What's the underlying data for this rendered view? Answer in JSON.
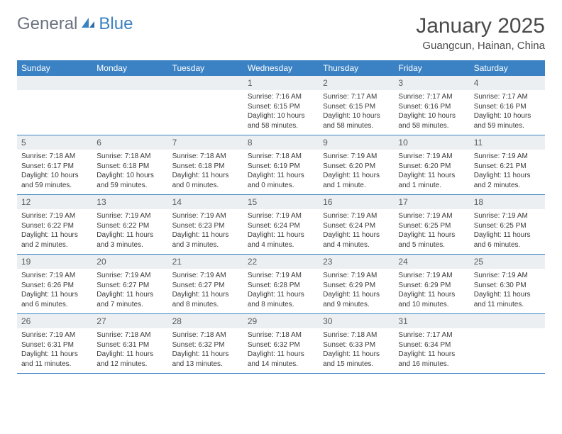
{
  "logo": {
    "text1": "General",
    "text2": "Blue"
  },
  "title": "January 2025",
  "location": "Guangcun, Hainan, China",
  "header_bg": "#3b82c4",
  "header_fg": "#ffffff",
  "daynum_bg": "#eceff1",
  "border_color": "#3b82c4",
  "weekdays": [
    "Sunday",
    "Monday",
    "Tuesday",
    "Wednesday",
    "Thursday",
    "Friday",
    "Saturday"
  ],
  "weeks": [
    [
      null,
      null,
      null,
      {
        "n": "1",
        "sr": "Sunrise: 7:16 AM",
        "ss": "Sunset: 6:15 PM",
        "dl": "Daylight: 10 hours and 58 minutes."
      },
      {
        "n": "2",
        "sr": "Sunrise: 7:17 AM",
        "ss": "Sunset: 6:15 PM",
        "dl": "Daylight: 10 hours and 58 minutes."
      },
      {
        "n": "3",
        "sr": "Sunrise: 7:17 AM",
        "ss": "Sunset: 6:16 PM",
        "dl": "Daylight: 10 hours and 58 minutes."
      },
      {
        "n": "4",
        "sr": "Sunrise: 7:17 AM",
        "ss": "Sunset: 6:16 PM",
        "dl": "Daylight: 10 hours and 59 minutes."
      }
    ],
    [
      {
        "n": "5",
        "sr": "Sunrise: 7:18 AM",
        "ss": "Sunset: 6:17 PM",
        "dl": "Daylight: 10 hours and 59 minutes."
      },
      {
        "n": "6",
        "sr": "Sunrise: 7:18 AM",
        "ss": "Sunset: 6:18 PM",
        "dl": "Daylight: 10 hours and 59 minutes."
      },
      {
        "n": "7",
        "sr": "Sunrise: 7:18 AM",
        "ss": "Sunset: 6:18 PM",
        "dl": "Daylight: 11 hours and 0 minutes."
      },
      {
        "n": "8",
        "sr": "Sunrise: 7:18 AM",
        "ss": "Sunset: 6:19 PM",
        "dl": "Daylight: 11 hours and 0 minutes."
      },
      {
        "n": "9",
        "sr": "Sunrise: 7:19 AM",
        "ss": "Sunset: 6:20 PM",
        "dl": "Daylight: 11 hours and 1 minute."
      },
      {
        "n": "10",
        "sr": "Sunrise: 7:19 AM",
        "ss": "Sunset: 6:20 PM",
        "dl": "Daylight: 11 hours and 1 minute."
      },
      {
        "n": "11",
        "sr": "Sunrise: 7:19 AM",
        "ss": "Sunset: 6:21 PM",
        "dl": "Daylight: 11 hours and 2 minutes."
      }
    ],
    [
      {
        "n": "12",
        "sr": "Sunrise: 7:19 AM",
        "ss": "Sunset: 6:22 PM",
        "dl": "Daylight: 11 hours and 2 minutes."
      },
      {
        "n": "13",
        "sr": "Sunrise: 7:19 AM",
        "ss": "Sunset: 6:22 PM",
        "dl": "Daylight: 11 hours and 3 minutes."
      },
      {
        "n": "14",
        "sr": "Sunrise: 7:19 AM",
        "ss": "Sunset: 6:23 PM",
        "dl": "Daylight: 11 hours and 3 minutes."
      },
      {
        "n": "15",
        "sr": "Sunrise: 7:19 AM",
        "ss": "Sunset: 6:24 PM",
        "dl": "Daylight: 11 hours and 4 minutes."
      },
      {
        "n": "16",
        "sr": "Sunrise: 7:19 AM",
        "ss": "Sunset: 6:24 PM",
        "dl": "Daylight: 11 hours and 4 minutes."
      },
      {
        "n": "17",
        "sr": "Sunrise: 7:19 AM",
        "ss": "Sunset: 6:25 PM",
        "dl": "Daylight: 11 hours and 5 minutes."
      },
      {
        "n": "18",
        "sr": "Sunrise: 7:19 AM",
        "ss": "Sunset: 6:25 PM",
        "dl": "Daylight: 11 hours and 6 minutes."
      }
    ],
    [
      {
        "n": "19",
        "sr": "Sunrise: 7:19 AM",
        "ss": "Sunset: 6:26 PM",
        "dl": "Daylight: 11 hours and 6 minutes."
      },
      {
        "n": "20",
        "sr": "Sunrise: 7:19 AM",
        "ss": "Sunset: 6:27 PM",
        "dl": "Daylight: 11 hours and 7 minutes."
      },
      {
        "n": "21",
        "sr": "Sunrise: 7:19 AM",
        "ss": "Sunset: 6:27 PM",
        "dl": "Daylight: 11 hours and 8 minutes."
      },
      {
        "n": "22",
        "sr": "Sunrise: 7:19 AM",
        "ss": "Sunset: 6:28 PM",
        "dl": "Daylight: 11 hours and 8 minutes."
      },
      {
        "n": "23",
        "sr": "Sunrise: 7:19 AM",
        "ss": "Sunset: 6:29 PM",
        "dl": "Daylight: 11 hours and 9 minutes."
      },
      {
        "n": "24",
        "sr": "Sunrise: 7:19 AM",
        "ss": "Sunset: 6:29 PM",
        "dl": "Daylight: 11 hours and 10 minutes."
      },
      {
        "n": "25",
        "sr": "Sunrise: 7:19 AM",
        "ss": "Sunset: 6:30 PM",
        "dl": "Daylight: 11 hours and 11 minutes."
      }
    ],
    [
      {
        "n": "26",
        "sr": "Sunrise: 7:19 AM",
        "ss": "Sunset: 6:31 PM",
        "dl": "Daylight: 11 hours and 11 minutes."
      },
      {
        "n": "27",
        "sr": "Sunrise: 7:18 AM",
        "ss": "Sunset: 6:31 PM",
        "dl": "Daylight: 11 hours and 12 minutes."
      },
      {
        "n": "28",
        "sr": "Sunrise: 7:18 AM",
        "ss": "Sunset: 6:32 PM",
        "dl": "Daylight: 11 hours and 13 minutes."
      },
      {
        "n": "29",
        "sr": "Sunrise: 7:18 AM",
        "ss": "Sunset: 6:32 PM",
        "dl": "Daylight: 11 hours and 14 minutes."
      },
      {
        "n": "30",
        "sr": "Sunrise: 7:18 AM",
        "ss": "Sunset: 6:33 PM",
        "dl": "Daylight: 11 hours and 15 minutes."
      },
      {
        "n": "31",
        "sr": "Sunrise: 7:17 AM",
        "ss": "Sunset: 6:34 PM",
        "dl": "Daylight: 11 hours and 16 minutes."
      },
      null
    ]
  ]
}
